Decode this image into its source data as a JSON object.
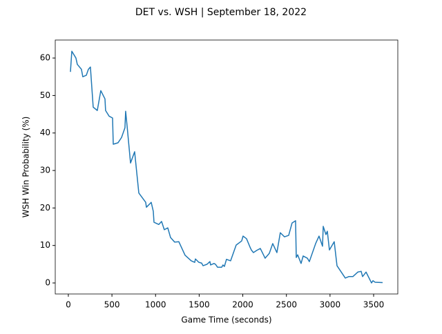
{
  "chart_data": {
    "type": "line",
    "title": "DET vs. WSH | September 18, 2022",
    "x_label": "Game Time (seconds)",
    "y_label": "WSH Win Probability (%)",
    "xlim": [
      -150,
      3777
    ],
    "ylim": [
      -2.94,
      64.8
    ],
    "xticks": [
      0,
      500,
      1000,
      1500,
      2000,
      2500,
      3000,
      3500
    ],
    "yticks": [
      0,
      10,
      20,
      30,
      40,
      50,
      60
    ],
    "series": [
      {
        "color": "#1f77b4",
        "x": [
          24,
          40,
          87,
          103,
          150,
          166,
          206,
          230,
          253,
          285,
          332,
          372,
          420,
          427,
          467,
          507,
          515,
          570,
          610,
          649,
          657,
          673,
          713,
          760,
          808,
          887,
          895,
          950,
          974,
          982,
          1037,
          1069,
          1100,
          1140,
          1172,
          1219,
          1267,
          1338,
          1409,
          1449,
          1457,
          1496,
          1528,
          1544,
          1591,
          1623,
          1631,
          1670,
          1686,
          1710,
          1758,
          1773,
          1789,
          1813,
          1860,
          1924,
          1987,
          2003,
          2043,
          2082,
          2098,
          2122,
          2161,
          2201,
          2256,
          2304,
          2343,
          2391,
          2430,
          2478,
          2526,
          2565,
          2605,
          2613,
          2629,
          2668,
          2692,
          2740,
          2763,
          2835,
          2874,
          2914,
          2922,
          2953,
          2969,
          2993,
          3048,
          3080,
          3175,
          3215,
          3262,
          3318,
          3357,
          3373,
          3413,
          3476,
          3492,
          3516,
          3603
        ],
        "values": [
          56.3,
          61.8,
          60,
          58.3,
          57,
          55,
          55.4,
          57,
          57.6,
          46.9,
          46,
          51.3,
          49.1,
          46,
          44.5,
          44,
          37,
          37.4,
          38.8,
          41.4,
          45.8,
          42,
          32,
          35,
          24,
          21.5,
          20.2,
          21.5,
          19.1,
          16.2,
          15.6,
          16.4,
          14.2,
          14.7,
          12.1,
          10.9,
          11.0,
          7.4,
          5.9,
          5.5,
          6.4,
          5.5,
          5.3,
          4.6,
          5.0,
          5.7,
          4.8,
          5.2,
          5.0,
          4.2,
          4.2,
          4.8,
          4.4,
          6.3,
          5.9,
          10.1,
          11.2,
          12.5,
          11.8,
          9.6,
          8.8,
          8.1,
          8.7,
          9.2,
          6.6,
          7.9,
          10.5,
          8.1,
          13.4,
          12.3,
          12.7,
          16.0,
          16.6,
          6.8,
          7.5,
          5.2,
          7.2,
          6.6,
          5.7,
          10.5,
          12.5,
          9.8,
          15.1,
          12.9,
          13.8,
          8.8,
          11.0,
          4.6,
          1.3,
          1.7,
          1.7,
          2.9,
          3.1,
          1.7,
          2.9,
          0,
          0.6,
          0.2,
          0.1
        ]
      }
    ]
  }
}
